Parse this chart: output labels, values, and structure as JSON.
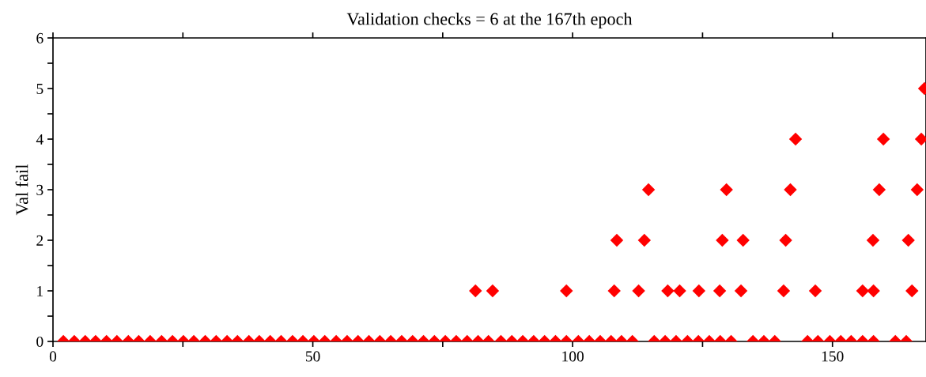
{
  "chart_data": {
    "type": "scatter",
    "title": "Validation checks = 6 at the 167th epoch",
    "ylabel": "Val fail",
    "xlim": [
      0,
      168
    ],
    "ylim": [
      0,
      6
    ],
    "xticks": [
      0,
      {
        "value": 25,
        "label": null
      },
      50,
      {
        "value": 75,
        "label": null
      },
      100,
      {
        "value": 125,
        "label": null
      },
      150
    ],
    "yticks": [
      0,
      {
        "value": 0.5,
        "label": null
      },
      1,
      {
        "value": 1.5,
        "label": null
      },
      2,
      {
        "value": 2.5,
        "label": null
      },
      3,
      {
        "value": 3.5,
        "label": null
      },
      4,
      {
        "value": 4.5,
        "label": null
      },
      5,
      {
        "value": 5.5,
        "label": null
      },
      6
    ],
    "marker": "diamond",
    "grid": false,
    "legend": false,
    "series": [
      {
        "color": "#ff0000",
        "x": [
          2.0,
          4.1,
          6.2,
          8.2,
          10.3,
          12.3,
          14.5,
          16.5,
          18.7,
          20.9,
          23.0,
          25.1,
          27.1,
          29.3,
          31.4,
          33.5,
          35.5,
          37.7,
          39.7,
          41.8,
          43.9,
          46.1,
          48.1,
          50.2,
          52.3,
          54.5,
          56.6,
          58.7,
          60.8,
          62.9,
          65.0,
          67.1,
          69.2,
          71.3,
          73.4,
          75.5,
          77.6,
          79.7,
          81.8,
          83.8,
          86.2,
          88.3,
          90.4,
          92.5,
          94.6,
          96.7,
          98.8,
          101.1,
          103.2,
          105.3,
          107.4,
          109.4,
          111.5,
          115.7,
          117.8,
          119.9,
          122.1,
          124.2,
          126.3,
          128.4,
          130.5,
          134.7,
          136.8,
          138.9,
          145.2,
          147.2,
          149.5,
          151.6,
          153.6,
          155.8,
          157.9,
          162.1,
          164.2,
          81.3,
          84.6,
          98.8,
          108.0,
          112.7,
          118.3,
          120.6,
          124.3,
          128.3,
          132.4,
          140.6,
          146.7,
          155.8,
          157.9,
          165.3,
          108.5,
          113.8,
          128.8,
          132.8,
          141.0,
          157.8,
          164.6,
          114.6,
          129.6,
          141.9,
          159.0,
          166.3,
          142.9,
          159.8,
          167.1,
          167.7
        ],
        "values": [
          0,
          0,
          0,
          0,
          0,
          0,
          0,
          0,
          0,
          0,
          0,
          0,
          0,
          0,
          0,
          0,
          0,
          0,
          0,
          0,
          0,
          0,
          0,
          0,
          0,
          0,
          0,
          0,
          0,
          0,
          0,
          0,
          0,
          0,
          0,
          0,
          0,
          0,
          0,
          0,
          0,
          0,
          0,
          0,
          0,
          0,
          0,
          0,
          0,
          0,
          0,
          0,
          0,
          0,
          0,
          0,
          0,
          0,
          0,
          0,
          0,
          0,
          0,
          0,
          0,
          0,
          0,
          0,
          0,
          0,
          0,
          0,
          0,
          1,
          1,
          1,
          1,
          1,
          1,
          1,
          1,
          1,
          1,
          1,
          1,
          1,
          1,
          1,
          2,
          2,
          2,
          2,
          2,
          2,
          2,
          3,
          3,
          3,
          3,
          3,
          4,
          4,
          4,
          5
        ]
      }
    ]
  }
}
